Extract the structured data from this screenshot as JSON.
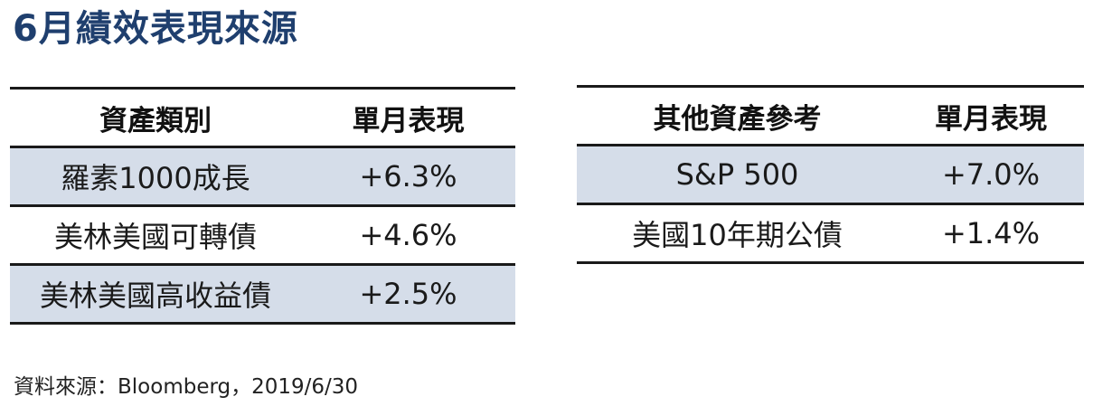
{
  "title": "6月績效表現來源",
  "left_table": {
    "headers": [
      "資產類別",
      "單月表現"
    ],
    "rows": [
      [
        "羅素1000成長",
        "+6.3%"
      ],
      [
        "美林美國可轉債",
        "+4.6%"
      ],
      [
        "美林美國高收益債",
        "+2.5%"
      ]
    ]
  },
  "right_table": {
    "headers": [
      "其他資產參考",
      "單月表現"
    ],
    "rows": [
      [
        "S&P 500",
        "+7.0%"
      ],
      [
        "美國10年期公債",
        "+1.4%"
      ]
    ]
  },
  "source": "資料來源：Bloomberg，2019/6/30",
  "colors": {
    "title": "#1f3f6e",
    "row_shade": "#d5dde9",
    "rule": "#1a1a1a"
  }
}
